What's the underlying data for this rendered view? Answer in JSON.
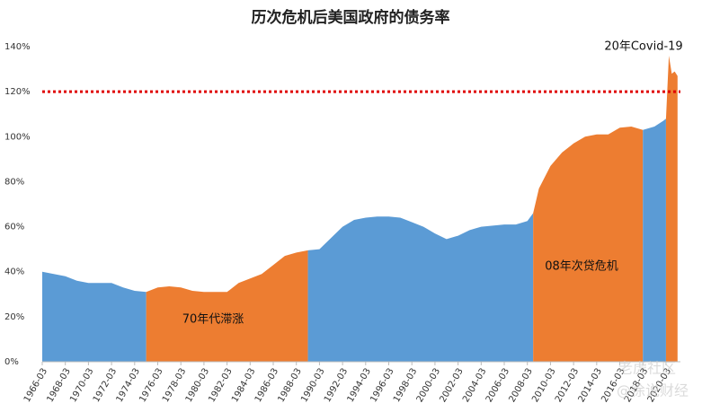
{
  "chart_data": {
    "type": "area",
    "title": "历次危机后美国政府的债务率",
    "x": [
      "1966-03",
      "1967-03",
      "1968-03",
      "1969-03",
      "1970-03",
      "1971-03",
      "1972-03",
      "1973-03",
      "1974-03",
      "1975-03",
      "1976-03",
      "1977-03",
      "1978-03",
      "1979-03",
      "1980-03",
      "1981-03",
      "1982-03",
      "1983-03",
      "1984-03",
      "1985-03",
      "1986-03",
      "1987-03",
      "1988-03",
      "1989-03",
      "1990-03",
      "1991-03",
      "1992-03",
      "1993-03",
      "1994-03",
      "1995-03",
      "1996-03",
      "1997-03",
      "1998-03",
      "1999-03",
      "2000-03",
      "2001-03",
      "2002-03",
      "2003-03",
      "2004-03",
      "2005-03",
      "2006-03",
      "2007-03",
      "2008-03",
      "2008-09",
      "2009-03",
      "2010-03",
      "2011-03",
      "2012-03",
      "2013-03",
      "2014-03",
      "2015-03",
      "2016-03",
      "2017-03",
      "2018-03",
      "2019-03",
      "2019-12",
      "2020-03",
      "2020-06",
      "2020-09",
      "2020-12",
      "2021-03"
    ],
    "values": [
      40,
      39,
      38,
      36,
      35,
      35,
      35,
      33,
      31.5,
      31,
      33,
      33.5,
      33,
      31.5,
      31,
      31,
      31,
      35,
      37,
      39,
      43,
      47,
      48.5,
      49.5,
      50,
      55,
      60,
      63,
      64,
      64.5,
      64.5,
      64,
      62,
      60,
      57,
      54.5,
      56,
      58.5,
      60,
      60.5,
      61,
      61,
      62.5,
      66,
      77,
      87,
      93,
      97,
      100,
      101,
      101,
      104,
      104.5,
      103,
      104.5,
      107,
      108,
      136,
      128,
      129,
      127
    ],
    "segments": [
      {
        "start": "1966-03",
        "end": "1975-03",
        "color": "#5b9bd5"
      },
      {
        "start": "1975-03",
        "end": "1989-03",
        "color": "#ed7d31"
      },
      {
        "start": "1989-03",
        "end": "2008-09",
        "color": "#5b9bd5"
      },
      {
        "start": "2008-09",
        "end": "2018-03",
        "color": "#ed7d31"
      },
      {
        "start": "2018-03",
        "end": "2020-03",
        "color": "#5b9bd5"
      },
      {
        "start": "2020-03",
        "end": "2021-03",
        "color": "#ed7d31"
      }
    ],
    "xlim": [
      "1966-03",
      "2021-06"
    ],
    "xticks": [
      "1966-03",
      "1968-03",
      "1970-03",
      "1972-03",
      "1974-03",
      "1976-03",
      "1978-03",
      "1980-03",
      "1982-03",
      "1984-03",
      "1986-03",
      "1988-03",
      "1990-03",
      "1992-03",
      "1994-03",
      "1996-03",
      "1998-03",
      "2000-03",
      "2002-03",
      "2004-03",
      "2006-03",
      "2008-03",
      "2010-03",
      "2012-03",
      "2014-03",
      "2016-03",
      "2018-03",
      "2020-03"
    ],
    "ylim": [
      0,
      140
    ],
    "yticks": [
      {
        "value": 0,
        "label": "0%"
      },
      {
        "value": 20,
        "label": "20%"
      },
      {
        "value": 40,
        "label": "40%"
      },
      {
        "value": 60,
        "label": "60%"
      },
      {
        "value": 80,
        "label": "80%"
      },
      {
        "value": 100,
        "label": "100%"
      },
      {
        "value": 120,
        "label": "120%"
      },
      {
        "value": 140,
        "label": "140%"
      }
    ],
    "reference_line": {
      "value": 120,
      "color": "#e00000"
    },
    "annotations": [
      "70年代滞涨",
      "08年次贷危机",
      "20年Covid-19"
    ],
    "watermark": [
      "老虎社区",
      "@徐说财经"
    ]
  }
}
